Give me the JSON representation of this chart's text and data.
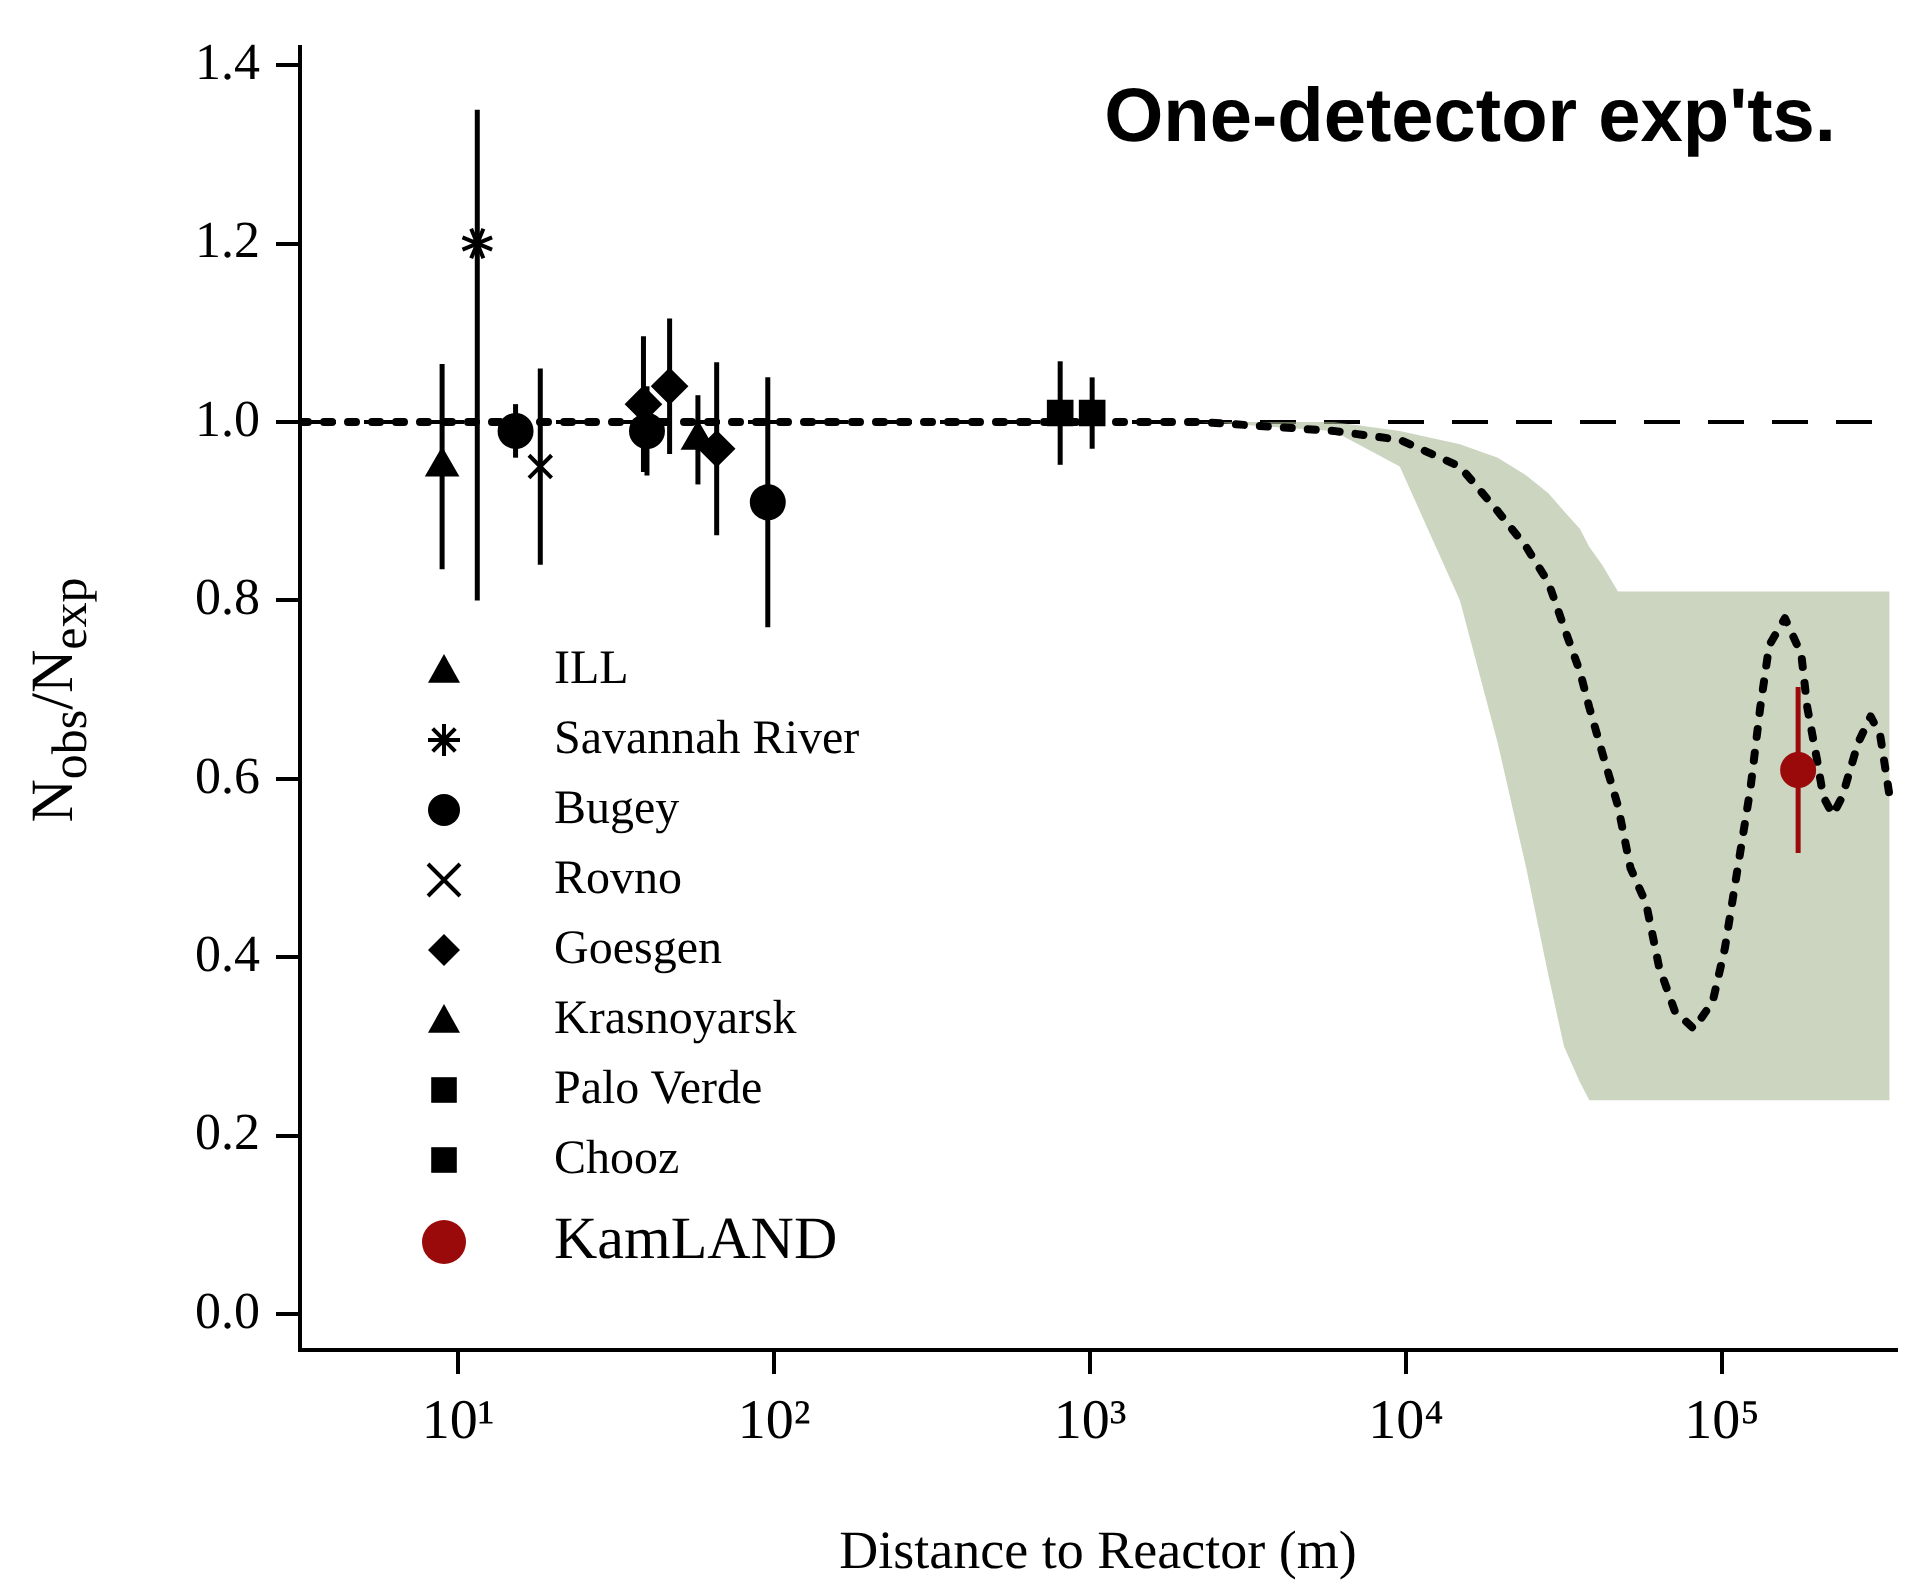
{
  "chart_data": {
    "type": "scatter",
    "title": "One-detector exp'ts.",
    "xlabel": "Distance to Reactor (m)",
    "ylabel": "N$_{obs}$/N$_{exp}$",
    "xlim": [
      3.16,
      355000
    ],
    "ylim": [
      -0.04,
      1.42
    ],
    "xticks": [
      {
        "value": 10,
        "label": "10¹"
      },
      {
        "value": 100,
        "label": "10²"
      },
      {
        "value": 1000,
        "label": "10³"
      },
      {
        "value": 10000,
        "label": "10⁴"
      },
      {
        "value": 100000,
        "label": "10⁵"
      }
    ],
    "yticks": [
      {
        "value": 0,
        "label": "0.0"
      },
      {
        "value": 0.2,
        "label": "0.2"
      },
      {
        "value": 0.4,
        "label": "0.4"
      },
      {
        "value": 0.6,
        "label": "0.6"
      },
      {
        "value": 0.8,
        "label": "0.8"
      },
      {
        "value": 1,
        "label": "1.0"
      },
      {
        "value": 1.2,
        "label": "1.2"
      },
      {
        "value": 1.4,
        "label": "1.4"
      }
    ],
    "log": "x",
    "grid": false,
    "legend": "bottom left",
    "ref_lines": [
      {
        "axis": "y",
        "value": 1,
        "line_style": "dashed",
        "color": "#000000"
      }
    ],
    "series": [
      {
        "name": "ILL",
        "color": "#000000",
        "marker": "triangle",
        "x": [
          8.9
        ],
        "values": [
          0.95
        ],
        "errors": [
          0.115
        ]
      },
      {
        "name": "Savannah River",
        "color": "#000000",
        "x": [
          11.5
        ],
        "values": [
          1.2
        ],
        "errors": [
          [
            0.8,
            1.35
          ]
        ]
      },
      {
        "name": "Bugey",
        "color": "#000000",
        "marker": "circle",
        "x": [
          15.2,
          39.6,
          95.5
        ],
        "values": [
          0.99,
          0.99,
          0.91
        ],
        "errors": [
          0.03,
          0.05,
          0.14
        ]
      },
      {
        "name": "Rovno",
        "color": "#000000",
        "marker": "cross",
        "x": [
          18.2
        ],
        "values": [
          0.95
        ],
        "errors": [
          0.11
        ]
      },
      {
        "name": "Goesgen",
        "color": "#000000",
        "marker": "diamond",
        "x": [
          38.6,
          46.7,
          65.8
        ],
        "values": [
          1.02,
          1.04,
          0.97
        ],
        "errors": [
          0.076,
          0.076,
          0.097
        ]
      },
      {
        "name": "Krasnoyarsk",
        "color": "#000000",
        "marker": "triangle",
        "x": [
          57.4
        ],
        "values": [
          0.98
        ],
        "errors": [
          0.05
        ]
      },
      {
        "name": "Palo Verde",
        "color": "#000000",
        "marker": "square",
        "x": [
          804
        ],
        "values": [
          1.01
        ],
        "errors": [
          0.058
        ]
      },
      {
        "name": "Chooz",
        "color": "#000000",
        "marker": "square",
        "x": [
          1015
        ],
        "values": [
          1.01
        ],
        "errors": [
          0.04
        ]
      },
      {
        "name": "KamLAND",
        "color": "#9b0a0a",
        "marker": "circle",
        "x": [
          174000
        ],
        "values": [
          0.61
        ],
        "errors": [
          0.093
        ]
      },
      {
        "type": "line",
        "color": "#000000",
        "line_style": "dotted",
        "marker": "none",
        "x": [
          3.16,
          2240,
          5890,
          9550,
          14800,
          19500,
          24000,
          28200,
          31600,
          35500,
          38000,
          41700,
          46800,
          51300,
          57500,
          63100,
          70800,
          81300,
          93300,
          102000,
          112000,
          123000,
          132000,
          141000,
          158000,
          178000,
          186000,
          200000,
          209000,
          224000,
          240000,
          269000,
          295000,
          316000,
          339000
        ],
        "values": [
          1.0,
          1.0,
          0.99,
          0.98,
          0.95,
          0.9,
          0.86,
          0.82,
          0.77,
          0.72,
          0.68,
          0.63,
          0.57,
          0.5,
          0.46,
          0.39,
          0.34,
          0.32,
          0.35,
          0.41,
          0.5,
          0.59,
          0.68,
          0.75,
          0.78,
          0.74,
          0.68,
          0.62,
          0.58,
          0.56,
          0.58,
          0.64,
          0.67,
          0.65,
          0.58
        ],
        "lower": [
          null,
          1.0,
          0.99,
          0.95,
          0.8,
          0.64,
          0.5,
          0.38,
          0.3,
          0.26,
          0.24,
          0.24,
          0.24,
          0.24,
          0.24,
          0.24,
          0.24,
          0.24,
          0.24,
          0.24,
          0.24,
          0.24,
          0.24,
          0.24,
          0.24,
          0.24,
          0.24,
          0.24,
          0.24,
          0.24,
          0.24,
          0.24,
          0.24,
          0.24,
          0.24
        ],
        "upper": [
          null,
          1.0,
          1.0,
          0.99,
          0.975,
          0.96,
          0.94,
          0.92,
          0.9,
          0.88,
          0.86,
          0.84,
          0.81,
          0.81,
          0.81,
          0.81,
          0.81,
          0.81,
          0.81,
          0.81,
          0.81,
          0.81,
          0.81,
          0.81,
          0.81,
          0.81,
          0.81,
          0.81,
          0.81,
          0.81,
          0.81,
          0.81,
          0.81,
          0.81,
          0.81
        ]
      }
    ]
  }
}
